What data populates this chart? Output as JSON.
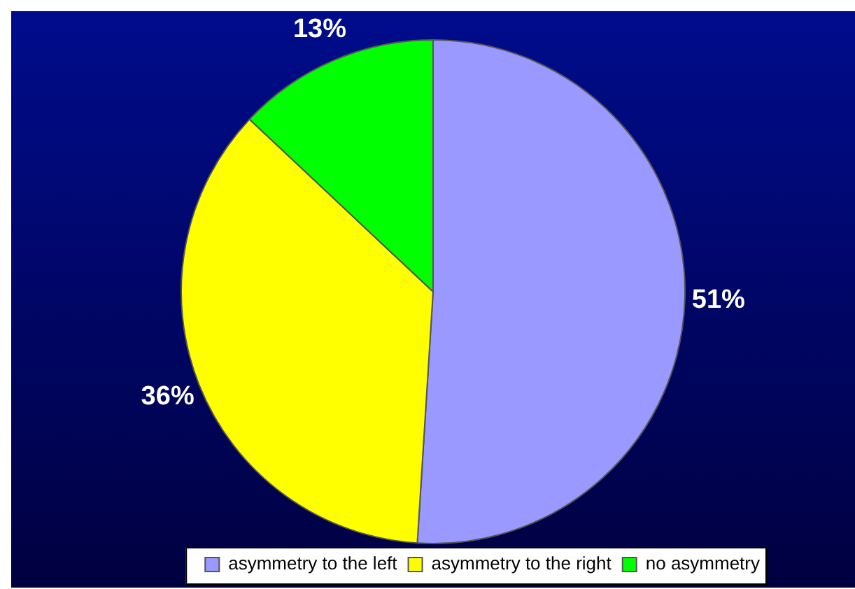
{
  "chart_data": {
    "type": "pie",
    "categories": [
      "asymmetry to the left",
      "asymmetry to the right",
      "no asymmetry"
    ],
    "values": [
      51,
      36,
      13
    ],
    "colors": [
      "#9999ff",
      "#ffff00",
      "#00ff00"
    ],
    "value_labels": [
      "51%",
      "36%",
      "13%"
    ],
    "legend": "bottom right"
  }
}
